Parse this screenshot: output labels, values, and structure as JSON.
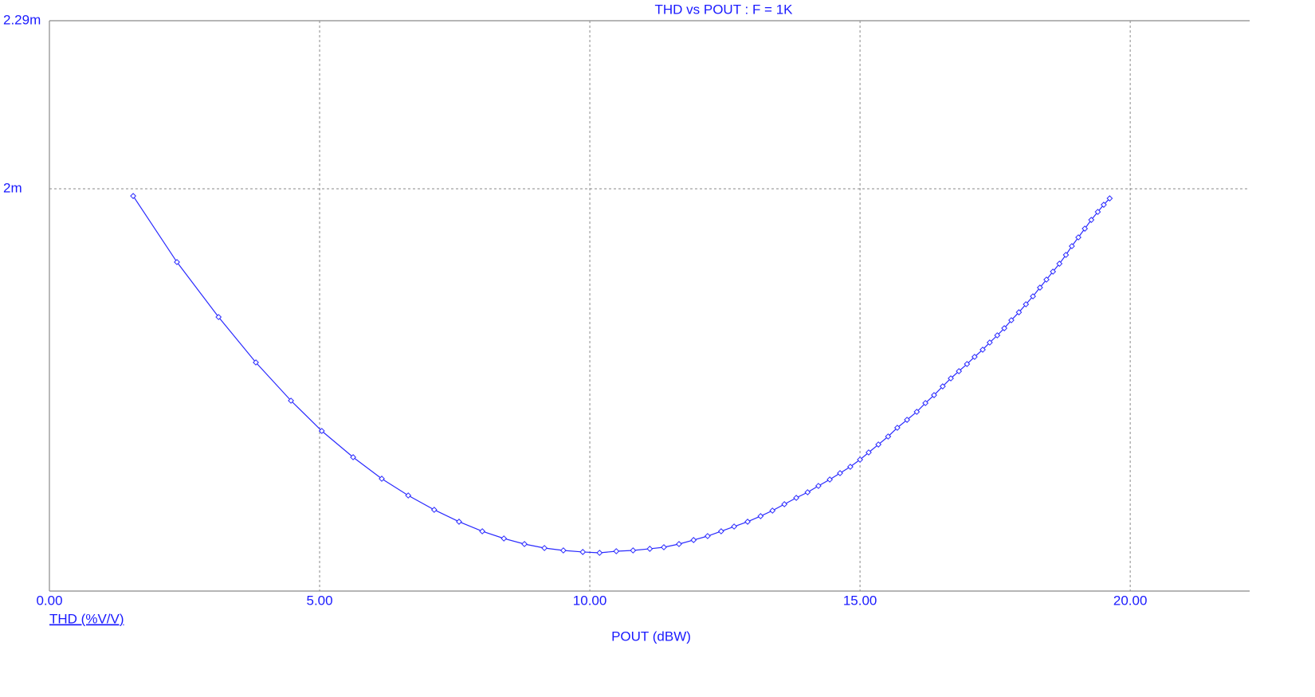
{
  "chart_data": {
    "type": "line",
    "title": "THD vs POUT : F = 1K",
    "xlabel": "POUT (dBW)",
    "x": [
      1.55,
      2.36,
      3.13,
      3.82,
      4.47,
      5.04,
      5.62,
      6.15,
      6.64,
      7.12,
      7.58,
      8.01,
      8.41,
      8.79,
      9.16,
      9.51,
      9.87,
      10.18,
      10.49,
      10.8,
      11.11,
      11.37,
      11.65,
      11.92,
      12.18,
      12.43,
      12.67,
      12.92,
      13.16,
      13.38,
      13.6,
      13.82,
      14.03,
      14.23,
      14.44,
      14.63,
      14.82,
      15.0,
      15.16,
      15.34,
      15.52,
      15.69,
      15.87,
      16.05,
      16.21,
      16.37,
      16.53,
      16.68,
      16.83,
      16.98,
      17.12,
      17.27,
      17.4,
      17.54,
      17.67,
      17.8,
      17.94,
      18.07,
      18.2,
      18.33,
      18.45,
      18.57,
      18.69,
      18.81,
      18.92,
      19.04,
      19.16,
      19.28,
      19.4,
      19.51,
      19.62
    ],
    "series": [
      {
        "name": "THD (%V/V)",
        "color": "#2a2aff",
        "values": [
          0.0019876,
          0.0018736,
          0.0017788,
          0.0017005,
          0.0016345,
          0.0015823,
          0.001537,
          0.0014999,
          0.001471,
          0.0014463,
          0.0014257,
          0.0014092,
          0.0013968,
          0.0013872,
          0.0013803,
          0.0013762,
          0.0013735,
          0.0013721,
          0.0013748,
          0.0013762,
          0.001379,
          0.0013817,
          0.0013872,
          0.0013941,
          0.0014009,
          0.0014092,
          0.0014174,
          0.0014257,
          0.0014353,
          0.0014449,
          0.0014559,
          0.0014669,
          0.0014765,
          0.0014875,
          0.0014985,
          0.0015095,
          0.0015205,
          0.0015328,
          0.0015452,
          0.0015589,
          0.0015727,
          0.0015878,
          0.0016015,
          0.0016153,
          0.0016304,
          0.0016441,
          0.0016592,
          0.001673,
          0.0016854,
          0.0016977,
          0.0017101,
          0.0017225,
          0.0017348,
          0.0017472,
          0.0017595,
          0.0017733,
          0.001787,
          0.0018008,
          0.0018145,
          0.0018296,
          0.0018434,
          0.0018571,
          0.0018708,
          0.001886,
          0.0019011,
          0.0019162,
          0.0019313,
          0.0019464,
          0.0019602,
          0.0019725,
          0.0019835
        ]
      }
    ],
    "xlim": [
      0,
      22.21
    ],
    "xticks": [
      {
        "value": 0,
        "label": "0.00"
      },
      {
        "value": 5,
        "label": "5.00"
      },
      {
        "value": 10,
        "label": "10.00"
      },
      {
        "value": 15,
        "label": "15.00"
      },
      {
        "value": 20,
        "label": "20.00"
      }
    ],
    "ylim": [
      0.0013061,
      0.00229
    ],
    "yticks": [
      {
        "value": 0.002,
        "label": "2m"
      },
      {
        "value": 0.00229,
        "label": "2.29m"
      }
    ],
    "grid": true
  }
}
